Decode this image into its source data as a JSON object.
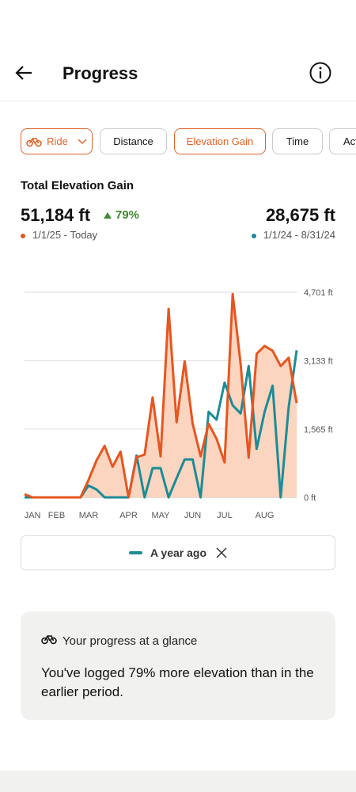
{
  "header": {
    "title": "Progress"
  },
  "tabs": [
    "Ride",
    "Distance",
    "Elevation Gain",
    "Time",
    "Act"
  ],
  "stats": {
    "title": "Total Elevation Gain",
    "current_value": "51,184 ft",
    "change": "79%",
    "current_period": "1/1/25 - Today",
    "previous_value": "28,675 ft",
    "previous_period": "1/1/24 - 8/31/24"
  },
  "chart_data": {
    "type": "line",
    "categories": [
      null,
      "JAN",
      null,
      null,
      "FEB",
      null,
      null,
      null,
      "MAR",
      null,
      null,
      null,
      null,
      "APR",
      null,
      null,
      null,
      "MAY",
      null,
      null,
      null,
      "JUN",
      null,
      null,
      null,
      "JUL",
      null,
      null,
      null,
      null,
      "AUG",
      null,
      null,
      null,
      null
    ],
    "series": [
      {
        "color": "#e8551f",
        "fill": "#fbd5c0",
        "values": [
          73,
          0,
          0,
          0,
          0,
          0,
          0,
          0,
          400,
          850,
          1180,
          700,
          1050,
          0,
          920,
          980,
          2290,
          940,
          4320,
          1720,
          3120,
          1690,
          940,
          1690,
          1340,
          800,
          4660,
          3050,
          910,
          3290,
          3470,
          3360,
          3010,
          3200,
          2160
        ]
      },
      {
        "name": "A year ago",
        "color": "#1c8c96",
        "values": [
          0,
          0,
          0,
          0,
          0,
          0,
          0,
          0,
          270,
          180,
          0,
          0,
          0,
          0,
          960,
          0,
          670,
          670,
          0,
          440,
          870,
          870,
          0,
          1960,
          1780,
          2630,
          2110,
          1920,
          3010,
          1110,
          1960,
          2560,
          0,
          2070,
          3370
        ]
      }
    ],
    "ylim": [
      0,
      4701
    ],
    "yticks": [
      {
        "value": 0,
        "label": "0 ft"
      },
      {
        "value": 1565,
        "label": "1,565 ft"
      },
      {
        "value": 3133,
        "label": "3,133 ft"
      },
      {
        "value": 4701,
        "label": "4,701 ft"
      }
    ],
    "grid": true
  },
  "card": {
    "title": "Your progress at a glance",
    "text": "You've logged 79% more elevation than in the earlier period."
  }
}
